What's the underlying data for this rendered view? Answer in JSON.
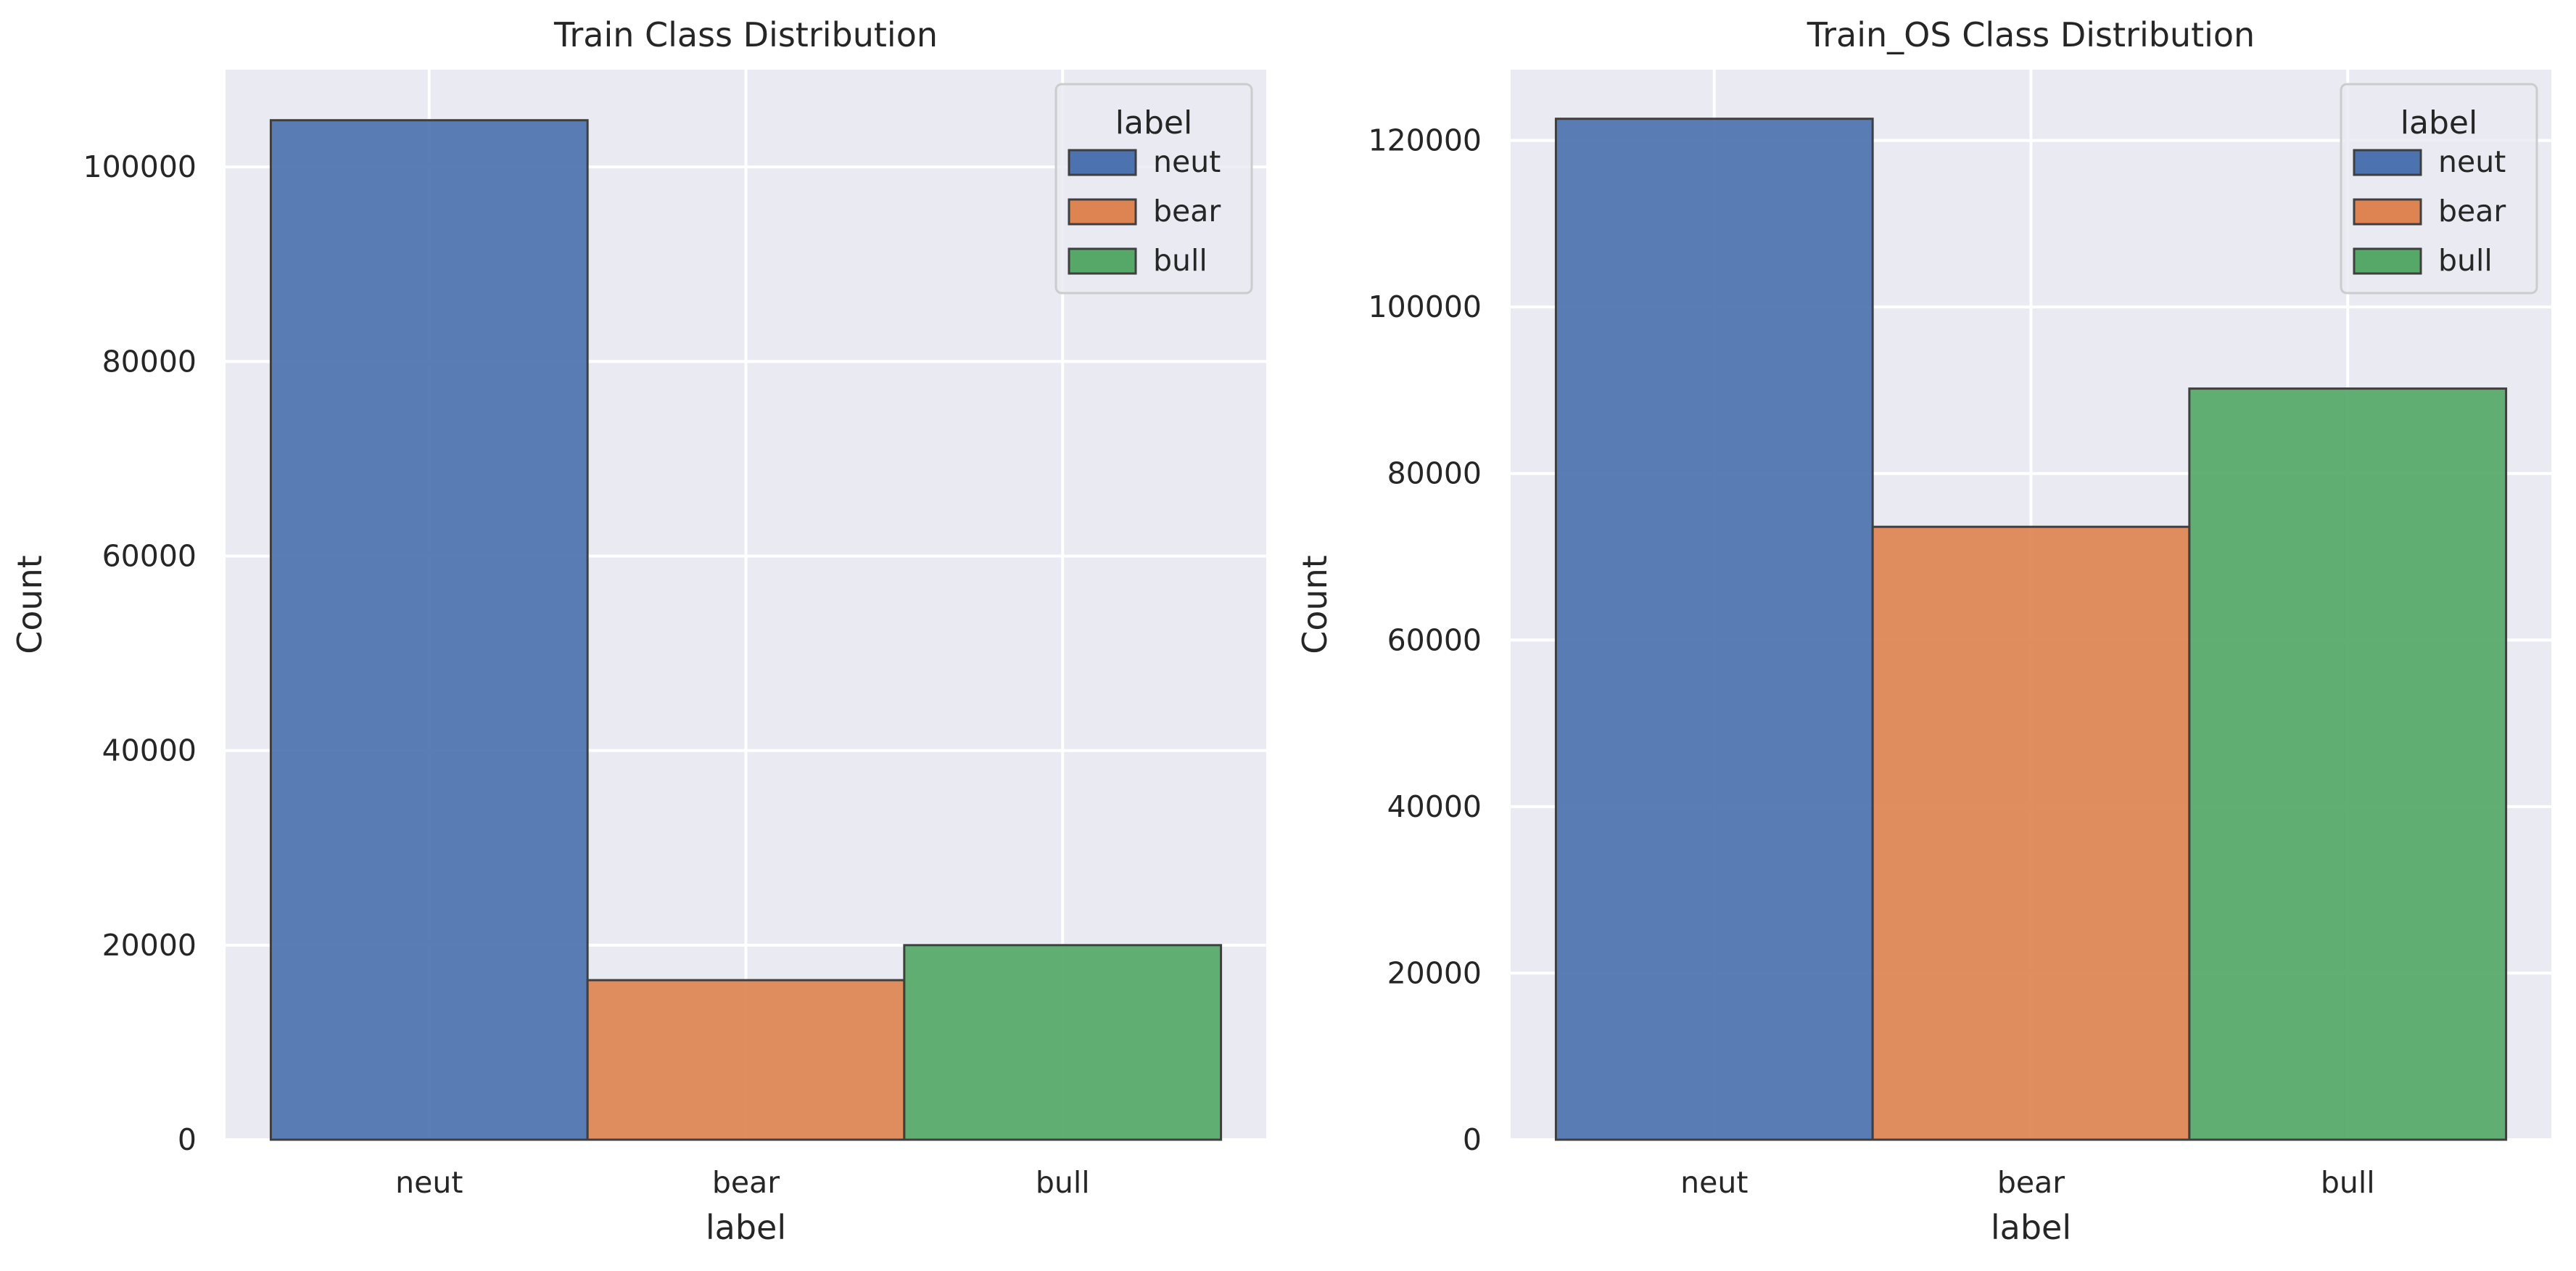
{
  "colors": {
    "neut": "#4c72b0",
    "bear": "#dd8452",
    "bull": "#55a868"
  },
  "chart_data": [
    {
      "type": "bar",
      "title": "Train Class Distribution",
      "xlabel": "label",
      "ylabel": "Count",
      "categories": [
        "neut",
        "bear",
        "bull"
      ],
      "values": [
        104800,
        16400,
        20000
      ],
      "ylim": [
        0,
        110000
      ],
      "yticks": [
        0,
        20000,
        40000,
        60000,
        80000,
        100000
      ],
      "grid": true,
      "legend": {
        "title": "label",
        "placement": "top-right",
        "entries": [
          "neut",
          "bear",
          "bull"
        ]
      }
    },
    {
      "type": "bar",
      "title": "Train_OS Class Distribution",
      "xlabel": "label",
      "ylabel": "Count",
      "categories": [
        "neut",
        "bear",
        "bull"
      ],
      "values": [
        122600,
        73600,
        90200
      ],
      "ylim": [
        0,
        128500
      ],
      "yticks": [
        0,
        20000,
        40000,
        60000,
        80000,
        100000,
        120000
      ],
      "grid": true,
      "legend": {
        "title": "label",
        "placement": "top-right",
        "entries": [
          "neut",
          "bear",
          "bull"
        ]
      }
    }
  ]
}
